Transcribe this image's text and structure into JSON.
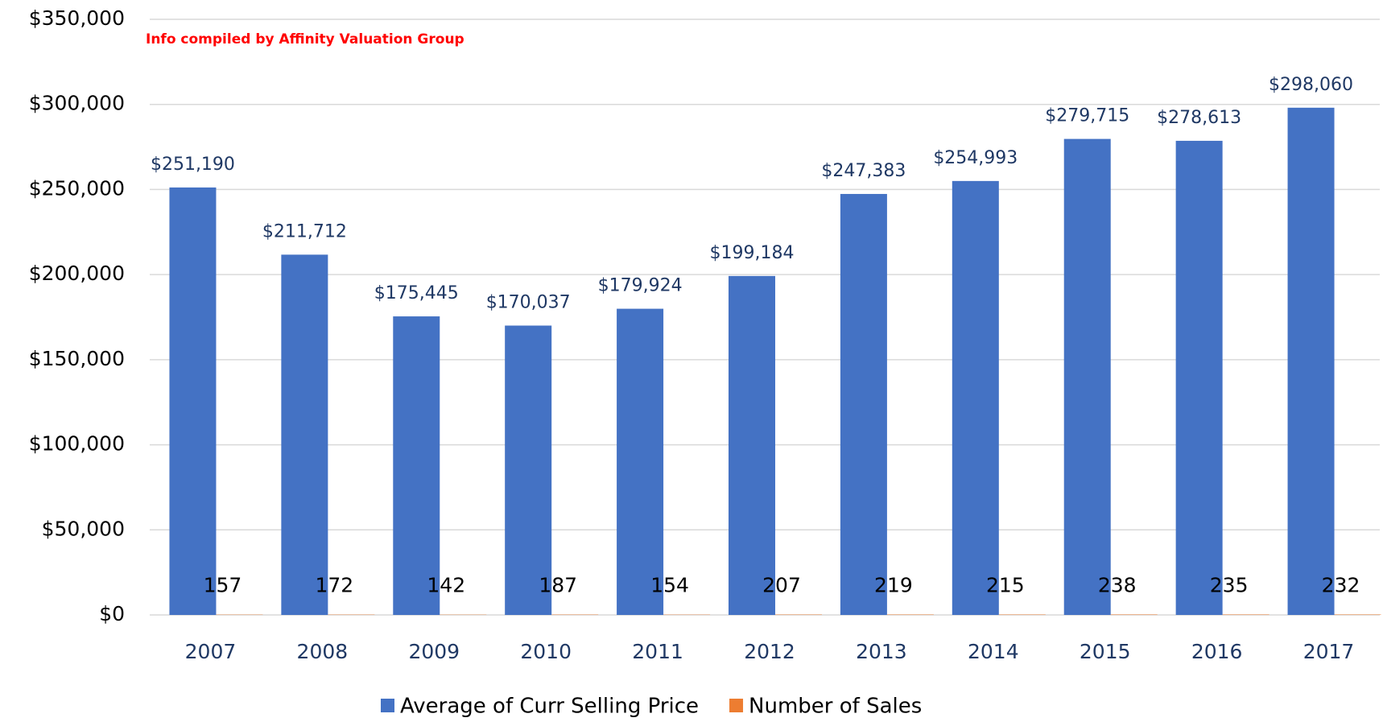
{
  "chart_data": {
    "type": "bar",
    "annotation": "Info compiled by Affinity Valuation Group",
    "categories": [
      "2007",
      "2008",
      "2009",
      "2010",
      "2011",
      "2012",
      "2013",
      "2014",
      "2015",
      "2016",
      "2017"
    ],
    "series": [
      {
        "name": "Average of Curr Selling Price",
        "color": "#4472c4",
        "values": [
          251190,
          211712,
          175445,
          170037,
          179924,
          199184,
          247383,
          254993,
          279715,
          278613,
          298060
        ],
        "value_labels": [
          "$251,190",
          "$211,712",
          "$175,445",
          "$170,037",
          "$179,924",
          "$199,184",
          "$247,383",
          "$254,993",
          "$279,715",
          "$278,613",
          "$298,060"
        ]
      },
      {
        "name": "Number of Sales",
        "color": "#ed7d31",
        "values": [
          157,
          172,
          142,
          187,
          154,
          207,
          219,
          215,
          238,
          235,
          232
        ]
      }
    ],
    "ylim": [
      0,
      350000
    ],
    "yticks": [
      {
        "value": 0,
        "label": "$0"
      },
      {
        "value": 50000,
        "label": "$50,000"
      },
      {
        "value": 100000,
        "label": "$100,000"
      },
      {
        "value": 150000,
        "label": "$150,000"
      },
      {
        "value": 200000,
        "label": "$200,000"
      },
      {
        "value": 250000,
        "label": "$250,000"
      },
      {
        "value": 300000,
        "label": "$300,000"
      },
      {
        "value": 350000,
        "label": "$350,000"
      }
    ],
    "grid": true
  }
}
